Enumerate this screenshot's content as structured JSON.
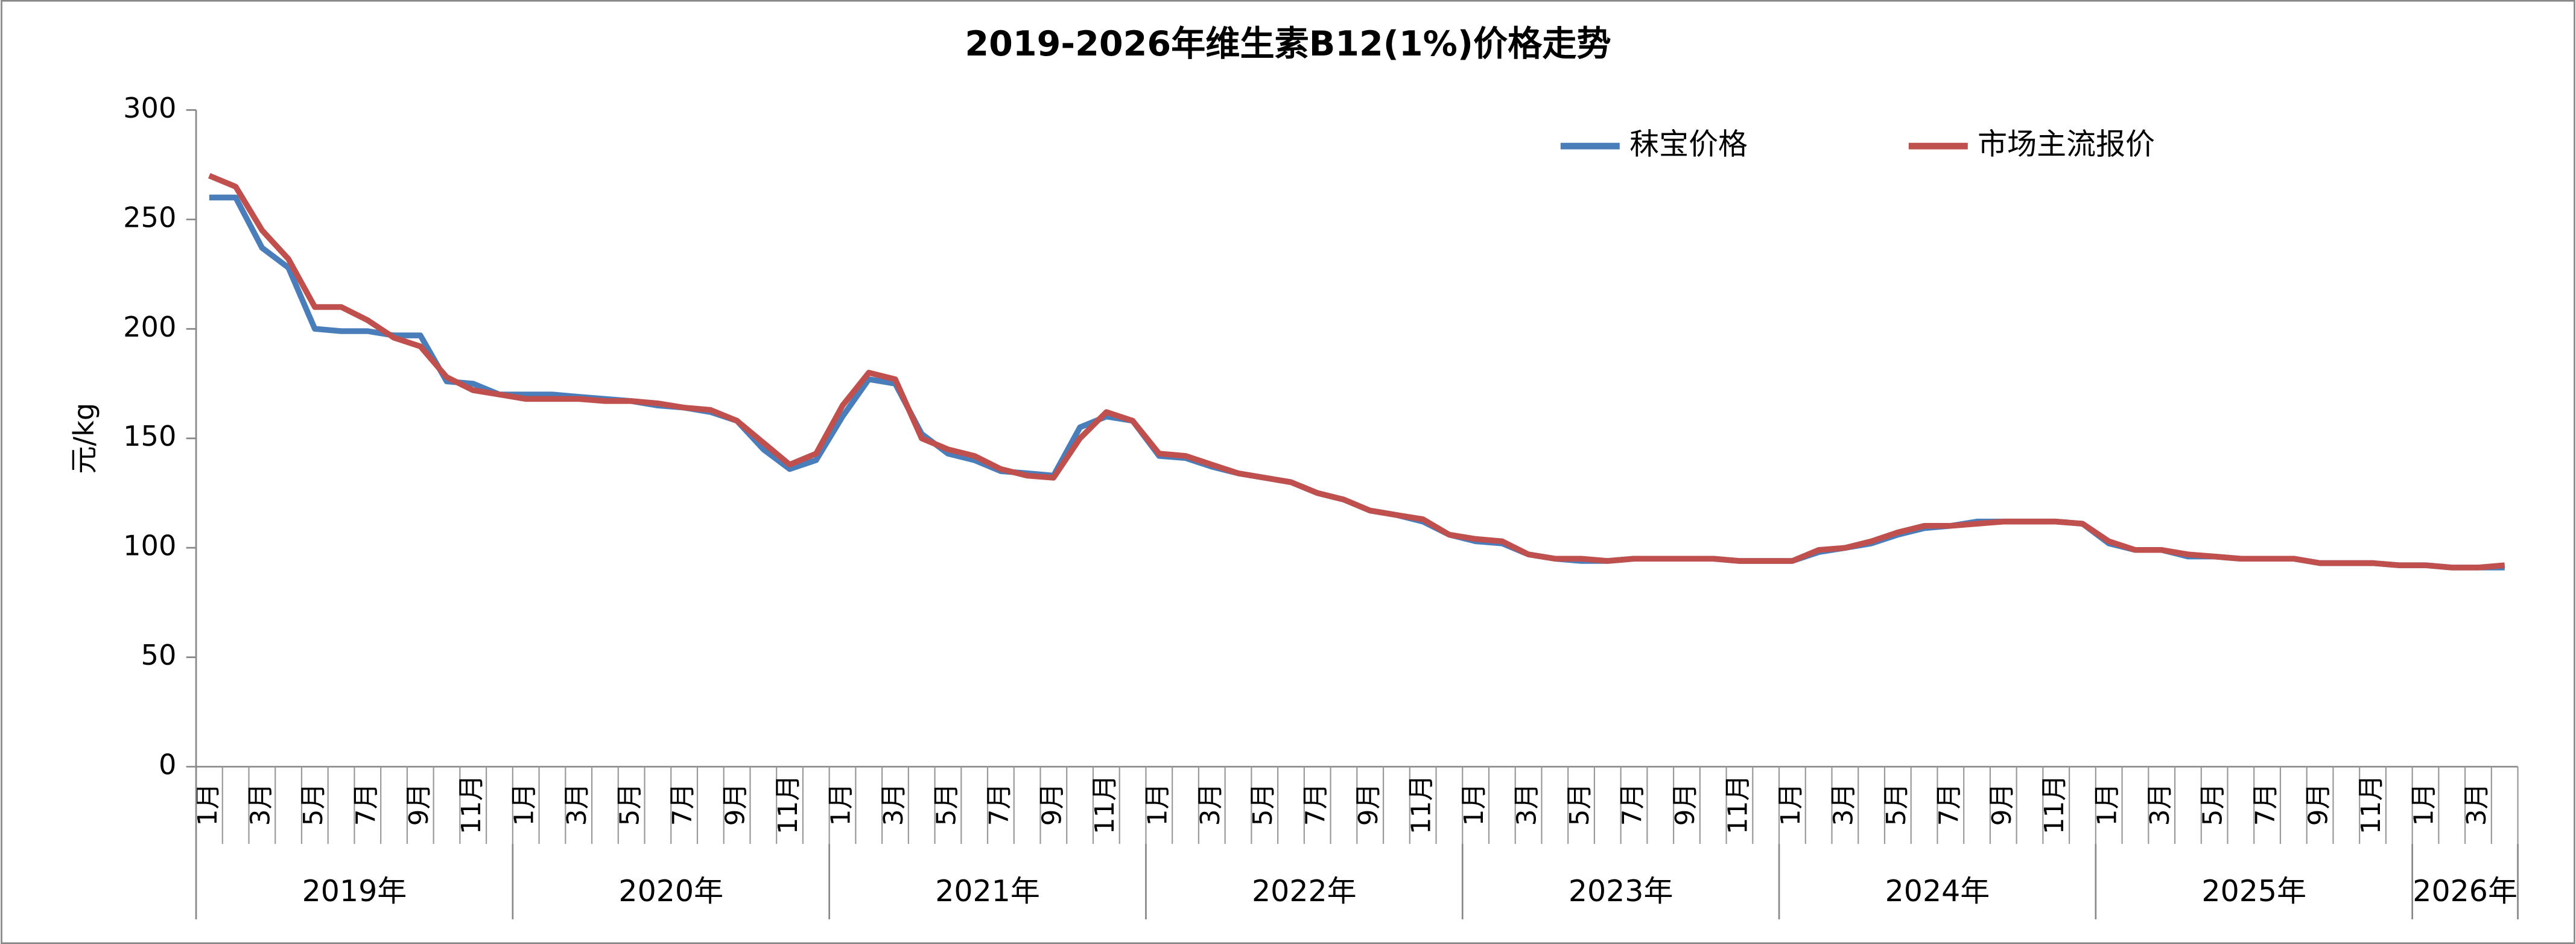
{
  "chart_data": {
    "type": "line",
    "title": "2019-2026年维生素B12(1%)价格走势",
    "y_label": "元/kg",
    "categories": [
      "1月",
      null,
      "3月",
      null,
      "5月",
      null,
      "7月",
      null,
      "9月",
      null,
      "11月",
      null,
      "1月",
      null,
      "3月",
      null,
      "5月",
      null,
      "7月",
      null,
      "9月",
      null,
      "11月",
      null,
      "1月",
      null,
      "3月",
      null,
      "5月",
      null,
      "7月",
      null,
      "9月",
      null,
      "11月",
      null,
      "1月",
      null,
      "3月",
      null,
      "5月",
      null,
      "7月",
      null,
      "9月",
      null,
      "11月",
      null,
      "1月",
      null,
      "3月",
      null,
      "5月",
      null,
      "7月",
      null,
      "9月",
      null,
      "11月",
      null,
      "1月",
      null,
      "3月",
      null,
      "5月",
      null,
      "7月",
      null,
      "9月",
      null,
      "11月",
      null,
      "1月",
      null,
      "3月",
      null,
      "5月",
      null,
      "7月",
      null,
      "9月",
      null,
      "11月",
      null,
      "1月",
      null,
      "3月",
      null
    ],
    "year_groups": [
      {
        "label": "2019年",
        "span": 12
      },
      {
        "label": "2020年",
        "span": 12
      },
      {
        "label": "2021年",
        "span": 12
      },
      {
        "label": "2022年",
        "span": 12
      },
      {
        "label": "2023年",
        "span": 12
      },
      {
        "label": "2024年",
        "span": 12
      },
      {
        "label": "2025年",
        "span": 12
      },
      {
        "label": "2026年",
        "span": 4
      }
    ],
    "series": [
      {
        "name": "秣宝价格",
        "color": "#4a7ebb",
        "values": [
          260,
          260,
          237,
          228,
          200,
          199,
          199,
          197,
          197,
          176,
          175,
          170,
          170,
          170,
          169,
          168,
          167,
          165,
          164,
          162,
          158,
          145,
          136,
          140,
          160,
          177,
          175,
          152,
          143,
          140,
          135,
          134,
          133,
          155,
          160,
          158,
          142,
          141,
          137,
          134,
          132,
          130,
          125,
          122,
          117,
          115,
          112,
          106,
          103,
          102,
          97,
          95,
          94,
          94,
          95,
          95,
          95,
          95,
          94,
          94,
          94,
          98,
          100,
          102,
          106,
          109,
          110,
          112,
          112,
          112,
          112,
          111,
          102,
          99,
          99,
          96,
          96,
          95,
          95,
          95,
          93,
          93,
          93,
          92,
          92,
          91,
          91,
          91
        ]
      },
      {
        "name": "市场主流报价",
        "color": "#c0504d",
        "values": [
          270,
          265,
          245,
          232,
          210,
          210,
          204,
          196,
          192,
          178,
          172,
          170,
          168,
          168,
          168,
          167,
          167,
          166,
          164,
          163,
          158,
          148,
          138,
          143,
          165,
          180,
          177,
          150,
          145,
          142,
          136,
          133,
          132,
          150,
          162,
          158,
          143,
          142,
          138,
          134,
          132,
          130,
          125,
          122,
          117,
          115,
          113,
          106,
          104,
          103,
          97,
          95,
          95,
          94,
          95,
          95,
          95,
          95,
          94,
          94,
          94,
          99,
          100,
          103,
          107,
          110,
          110,
          111,
          112,
          112,
          112,
          111,
          103,
          99,
          99,
          97,
          96,
          95,
          95,
          95,
          93,
          93,
          93,
          92,
          92,
          91,
          91,
          92
        ]
      }
    ],
    "ylim": [
      0,
      300
    ],
    "yticks": [
      0,
      50,
      100,
      150,
      200,
      250,
      300
    ],
    "legend": "top-right",
    "grid": false
  }
}
